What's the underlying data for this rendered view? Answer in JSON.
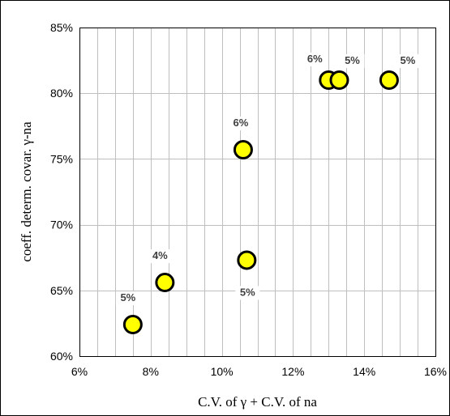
{
  "chart_data": {
    "type": "scatter",
    "xlabel": "C.V. of γ + C.V. of na",
    "ylabel": "coeff. determ. covar. γ-na",
    "xlim": [
      0.06,
      0.16
    ],
    "ylim": [
      0.6,
      0.85
    ],
    "x_ticks": [
      0.06,
      0.08,
      0.1,
      0.12,
      0.14,
      0.16
    ],
    "y_ticks": [
      0.6,
      0.65,
      0.7,
      0.75,
      0.8,
      0.85
    ],
    "x_tick_labels": [
      "6%",
      "8%",
      "10%",
      "12%",
      "14%",
      "16%"
    ],
    "y_tick_labels": [
      "60%",
      "65%",
      "70%",
      "75%",
      "80%",
      "85%"
    ],
    "grid": true,
    "marker_color": "#ffff00",
    "marker_edge_color": "#000000",
    "points": [
      {
        "x": 0.075,
        "y": 0.624,
        "label": "5%"
      },
      {
        "x": 0.084,
        "y": 0.656,
        "label": "4%"
      },
      {
        "x": 0.106,
        "y": 0.757,
        "label": "6%"
      },
      {
        "x": 0.107,
        "y": 0.673,
        "label": "5%"
      },
      {
        "x": 0.13,
        "y": 0.81,
        "label": "6%"
      },
      {
        "x": 0.133,
        "y": 0.81,
        "label": "5%"
      },
      {
        "x": 0.147,
        "y": 0.81,
        "label": "5%"
      }
    ]
  }
}
